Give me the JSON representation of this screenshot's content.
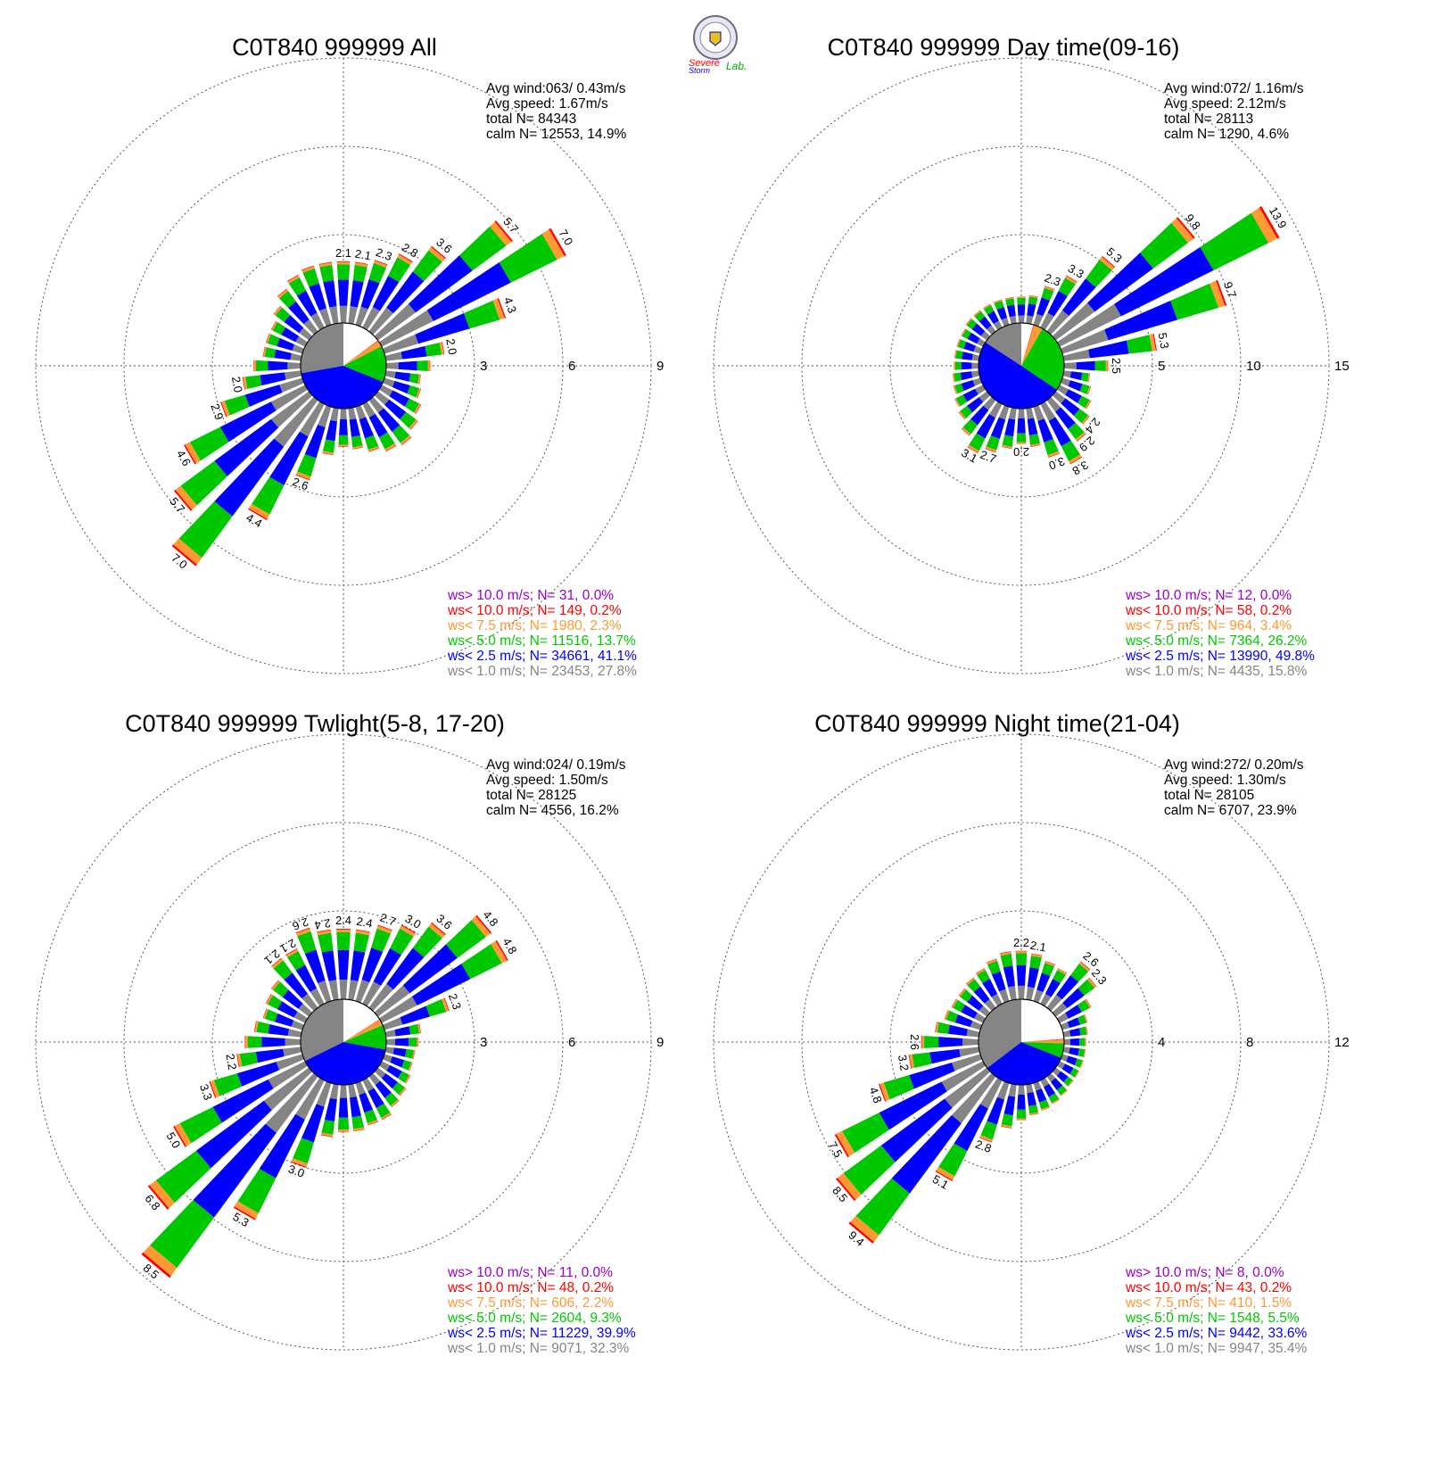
{
  "colors": {
    "gray": "#858585",
    "blue": "#0000ff",
    "green": "#00c800",
    "orange": "#ff9933",
    "red": "#ff0000",
    "purple": "#9900cc",
    "white": "#ffffff"
  },
  "logo": {
    "text_top": "Severe",
    "text_bottom": "Storm",
    "text_lab": "Lab."
  },
  "chart_data": [
    {
      "type": "polar-bar (wind rose)",
      "title": "C0T840 999999 All",
      "stats": [
        "Avg wind:063/ 0.43m/s",
        "Avg speed: 1.67m/s",
        "total N=      84343",
        "calm N=  12553,  14.9%"
      ],
      "rings": [
        3,
        6,
        9
      ],
      "rmax": 9,
      "tick_labels": [
        "3",
        "6",
        "9"
      ],
      "pie_percent": [
        27.8,
        41.1,
        13.7,
        2.3,
        0.2,
        0.0
      ],
      "directions_deg": [
        0,
        10,
        20,
        30,
        40,
        50,
        60,
        70,
        80,
        90,
        100,
        110,
        120,
        130,
        140,
        150,
        160,
        170,
        180,
        190,
        200,
        210,
        220,
        230,
        240,
        250,
        260,
        270,
        280,
        290,
        300,
        310,
        320,
        330,
        340,
        350
      ],
      "totals": [
        2.1,
        2.1,
        2.3,
        2.8,
        3.6,
        5.7,
        7.0,
        4.3,
        2.0,
        1.5,
        1.2,
        1.3,
        1.5,
        1.7,
        1.9,
        1.8,
        1.6,
        1.4,
        1.3,
        1.6,
        2.6,
        4.4,
        7.0,
        5.7,
        4.6,
        2.9,
        2.0,
        1.6,
        1.3,
        1.3,
        1.3,
        1.5,
        1.8,
        2.0,
        2.1,
        2.1
      ],
      "labeled": [
        0,
        1,
        2,
        3,
        4,
        5,
        6,
        7,
        8,
        20,
        21,
        22,
        23,
        24,
        25,
        26
      ],
      "bar_labels": [
        "2.1",
        "2.1",
        "2.3",
        "2.8",
        "3.6",
        "5.7",
        "7.0",
        "4.3",
        "2.0",
        "2.6",
        "4.4",
        "7.0",
        "5.7",
        "4.6",
        "2.9",
        "2.0"
      ],
      "legend": [
        {
          "text": "ws> 10.0 m/s; N=    31,  0.0%",
          "color": "purple"
        },
        {
          "text": "ws< 10.0 m/s; N=   149,  0.2%",
          "color": "red"
        },
        {
          "text": "ws<  7.5 m/s; N=  1980,  2.3%",
          "color": "orange"
        },
        {
          "text": "ws<  5.0 m/s; N= 11516, 13.7%",
          "color": "green"
        },
        {
          "text": "ws<  2.5 m/s; N= 34661, 41.1%",
          "color": "blue"
        },
        {
          "text": "ws<  1.0 m/s; N= 23453, 27.8%",
          "color": "gray"
        }
      ]
    },
    {
      "type": "polar-bar (wind rose)",
      "title": "C0T840 999999 Day time(09-16)",
      "stats": [
        "Avg wind:072/ 1.16m/s",
        "Avg speed: 2.12m/s",
        "total N=      28113",
        "calm N=   1290,   4.6%"
      ],
      "rings": [
        5,
        10,
        15
      ],
      "rmax": 15,
      "tick_labels": [
        "5",
        "10",
        "15"
      ],
      "pie_percent": [
        15.8,
        49.8,
        26.2,
        3.4,
        0.2,
        0.0
      ],
      "directions_deg": [
        0,
        10,
        20,
        30,
        40,
        50,
        60,
        70,
        80,
        90,
        100,
        110,
        120,
        130,
        140,
        150,
        160,
        170,
        180,
        190,
        200,
        210,
        220,
        230,
        240,
        250,
        260,
        270,
        280,
        290,
        300,
        310,
        320,
        330,
        340,
        350
      ],
      "totals": [
        1.5,
        1.6,
        2.3,
        3.3,
        5.3,
        9.8,
        13.9,
        9.7,
        5.3,
        2.5,
        1.5,
        1.7,
        2.0,
        2.4,
        2.9,
        3.8,
        3.0,
        2.2,
        2.0,
        2.3,
        2.7,
        3.1,
        2.5,
        2.0,
        1.8,
        1.6,
        1.5,
        1.4,
        1.4,
        1.4,
        1.4,
        1.5,
        1.5,
        1.5,
        1.5,
        1.5
      ],
      "labeled": [
        2,
        3,
        4,
        5,
        6,
        7,
        8,
        9,
        13,
        14,
        15,
        16,
        18,
        20,
        21
      ],
      "bar_labels": [
        "2.3",
        "3.3",
        "5.3",
        "9.8",
        "13.9",
        "9.7",
        "5.3",
        "2.5",
        "2.4",
        "2.9",
        "3.8",
        "3.0",
        "2.0",
        "2.7",
        "3.1"
      ],
      "legend": [
        {
          "text": "ws> 10.0 m/s; N=    12,  0.0%",
          "color": "purple"
        },
        {
          "text": "ws< 10.0 m/s; N=    58,  0.2%",
          "color": "red"
        },
        {
          "text": "ws<  7.5 m/s; N=   964,  3.4%",
          "color": "orange"
        },
        {
          "text": "ws<  5.0 m/s; N=  7364, 26.2%",
          "color": "green"
        },
        {
          "text": "ws<  2.5 m/s; N= 13990, 49.8%",
          "color": "blue"
        },
        {
          "text": "ws<  1.0 m/s; N=  4435, 15.8%",
          "color": "gray"
        }
      ]
    },
    {
      "type": "polar-bar (wind rose)",
      "title": "C0T840 999999 Twlight(5-8, 17-20)",
      "stats": [
        "Avg wind:024/ 0.19m/s",
        "Avg speed: 1.50m/s",
        "total N=      28125",
        "calm N=   4556,  16.2%"
      ],
      "rings": [
        3,
        6,
        9
      ],
      "rmax": 9,
      "tick_labels": [
        "3",
        "6",
        "9"
      ],
      "pie_percent": [
        32.3,
        39.9,
        9.3,
        2.2,
        0.2,
        0.0
      ],
      "directions_deg": [
        0,
        10,
        20,
        30,
        40,
        50,
        60,
        70,
        80,
        90,
        100,
        110,
        120,
        130,
        140,
        150,
        160,
        170,
        180,
        190,
        200,
        210,
        220,
        230,
        240,
        250,
        260,
        270,
        280,
        290,
        300,
        310,
        320,
        330,
        340,
        350
      ],
      "totals": [
        2.4,
        2.4,
        2.7,
        3.0,
        3.6,
        4.8,
        4.8,
        2.3,
        1.2,
        1.1,
        1.0,
        1.0,
        1.1,
        1.2,
        1.3,
        1.5,
        1.5,
        1.6,
        1.6,
        1.8,
        3.0,
        5.3,
        8.5,
        6.8,
        5.0,
        3.3,
        2.2,
        1.9,
        1.6,
        1.4,
        1.5,
        1.6,
        2.1,
        2.1,
        2.6,
        2.4
      ],
      "labeled": [
        0,
        1,
        2,
        3,
        4,
        5,
        6,
        7,
        20,
        21,
        22,
        23,
        24,
        25,
        26,
        32,
        33,
        34,
        35
      ],
      "bar_labels": [
        "2.4",
        "2.4",
        "2.7",
        "3.0",
        "3.6",
        "4.8",
        "4.8",
        "2.3",
        "3.0",
        "5.3",
        "8.5",
        "6.8",
        "5.0",
        "3.3",
        "2.2",
        "2.1",
        "2.1",
        "2.6",
        "2.4"
      ],
      "legend": [
        {
          "text": "ws> 10.0 m/s; N=    11,  0.0%",
          "color": "purple"
        },
        {
          "text": "ws< 10.0 m/s; N=    48,  0.2%",
          "color": "red"
        },
        {
          "text": "ws<  7.5 m/s; N=   606,  2.2%",
          "color": "orange"
        },
        {
          "text": "ws<  5.0 m/s; N=  2604,  9.3%",
          "color": "green"
        },
        {
          "text": "ws<  2.5 m/s; N= 11229, 39.9%",
          "color": "blue"
        },
        {
          "text": "ws<  1.0 m/s; N=  9071, 32.3%",
          "color": "gray"
        }
      ]
    },
    {
      "type": "polar-bar (wind rose)",
      "title": "C0T840 999999 Night time(21-04)",
      "stats": [
        "Avg wind:272/ 0.20m/s",
        "Avg speed: 1.30m/s",
        "total N=      28105",
        "calm N=   6707,  23.9%"
      ],
      "rings": [
        4,
        8,
        12
      ],
      "rmax": 12,
      "tick_labels": [
        "4",
        "8",
        "12"
      ],
      "pie_percent": [
        35.4,
        33.6,
        5.5,
        1.5,
        0.2,
        0.0
      ],
      "directions_deg": [
        0,
        10,
        20,
        30,
        40,
        50,
        60,
        70,
        80,
        90,
        100,
        110,
        120,
        130,
        140,
        150,
        160,
        170,
        180,
        190,
        200,
        210,
        220,
        230,
        240,
        250,
        260,
        270,
        280,
        290,
        300,
        310,
        320,
        330,
        340,
        350
      ],
      "totals": [
        2.2,
        2.1,
        1.9,
        1.8,
        2.6,
        2.3,
        1.6,
        1.2,
        1.1,
        1.0,
        1.0,
        1.0,
        1.0,
        1.0,
        1.1,
        1.2,
        1.3,
        1.4,
        1.6,
        2.0,
        2.8,
        5.1,
        9.4,
        8.5,
        7.5,
        4.8,
        3.2,
        2.6,
        2.0,
        1.7,
        1.6,
        1.6,
        1.7,
        1.8,
        2.0,
        2.2
      ],
      "labeled": [
        0,
        1,
        4,
        5,
        20,
        21,
        22,
        23,
        24,
        25,
        26,
        27
      ],
      "bar_labels": [
        "2.2",
        "2.1",
        "2.6",
        "2.3",
        "2.8",
        "5.1",
        "9.4",
        "8.5",
        "7.5",
        "4.8",
        "3.2",
        "2.6"
      ],
      "legend": [
        {
          "text": "ws> 10.0 m/s; N=     8,  0.0%",
          "color": "purple"
        },
        {
          "text": "ws< 10.0 m/s; N=    43,  0.2%",
          "color": "red"
        },
        {
          "text": "ws<  7.5 m/s; N=   410,  1.5%",
          "color": "orange"
        },
        {
          "text": "ws<  5.0 m/s; N=  1548,  5.5%",
          "color": "green"
        },
        {
          "text": "ws<  2.5 m/s; N=  9442, 33.6%",
          "color": "blue"
        },
        {
          "text": "ws<  1.0 m/s; N=  9947, 35.4%",
          "color": "gray"
        }
      ]
    }
  ]
}
